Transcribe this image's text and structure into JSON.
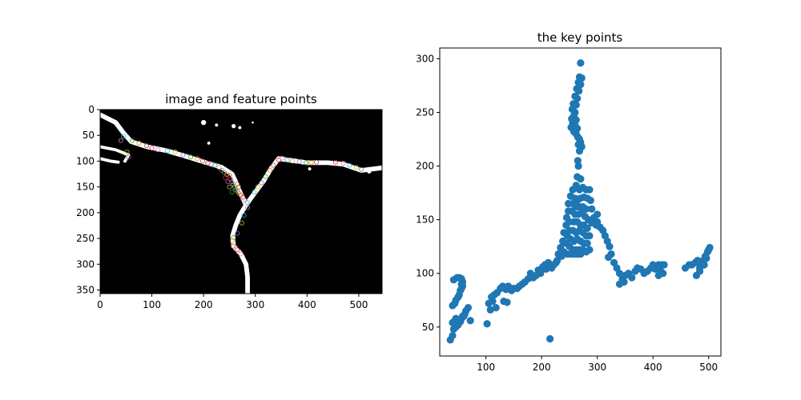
{
  "colors": {
    "point": "#1f77b4",
    "image_background": "#000000",
    "road": "#ffffff",
    "feature_marker_palette": [
      "#e377c2",
      "#17becf",
      "#bcbd22",
      "#9467bd",
      "#2ca02c",
      "#ff7f0e",
      "#8c564b",
      "#d62728"
    ]
  },
  "chart_data": [
    {
      "type": "image",
      "title": "image and feature points",
      "xlim": [
        0,
        545
      ],
      "ylim": [
        357,
        0
      ],
      "xticks": [
        0,
        100,
        200,
        300,
        400,
        500
      ],
      "yticks": [
        0,
        50,
        100,
        150,
        200,
        250,
        300,
        350
      ],
      "road_paths": [
        [
          [
            0,
            10
          ],
          [
            30,
            25
          ],
          [
            45,
            45
          ],
          [
            60,
            62
          ],
          [
            90,
            72
          ],
          [
            130,
            80
          ],
          [
            170,
            92
          ],
          [
            205,
            103
          ],
          [
            235,
            112
          ],
          [
            255,
            125
          ],
          [
            262,
            140
          ],
          [
            268,
            155
          ],
          [
            275,
            170
          ],
          [
            282,
            185
          ]
        ],
        [
          [
            282,
            185
          ],
          [
            300,
            160
          ],
          [
            315,
            140
          ],
          [
            330,
            115
          ],
          [
            345,
            95
          ],
          [
            365,
            98
          ],
          [
            400,
            103
          ],
          [
            440,
            103
          ],
          [
            470,
            106
          ],
          [
            505,
            118
          ],
          [
            545,
            113
          ]
        ],
        [
          [
            282,
            185
          ],
          [
            270,
            205
          ],
          [
            262,
            225
          ],
          [
            256,
            245
          ],
          [
            258,
            265
          ],
          [
            272,
            280
          ],
          [
            282,
            300
          ],
          [
            285,
            325
          ],
          [
            285,
            357
          ]
        ],
        [
          [
            0,
            72
          ],
          [
            30,
            78
          ],
          [
            55,
            88
          ],
          [
            48,
            100
          ]
        ],
        [
          [
            0,
            95
          ],
          [
            20,
            100
          ],
          [
            35,
            102
          ]
        ]
      ],
      "blobs": [
        [
          200,
          25,
          5
        ],
        [
          225,
          30,
          3
        ],
        [
          258,
          32,
          4
        ],
        [
          270,
          35,
          3
        ],
        [
          295,
          25,
          2
        ],
        [
          210,
          65,
          3
        ],
        [
          405,
          115,
          3
        ],
        [
          520,
          120,
          4
        ]
      ],
      "feature_points": [
        [
          40,
          60
        ],
        [
          45,
          52
        ],
        [
          52,
          82
        ],
        [
          55,
          92
        ],
        [
          62,
          60
        ],
        [
          75,
          65
        ],
        [
          90,
          70
        ],
        [
          100,
          75
        ],
        [
          112,
          78
        ],
        [
          130,
          80
        ],
        [
          145,
          82
        ],
        [
          160,
          88
        ],
        [
          175,
          92
        ],
        [
          188,
          95
        ],
        [
          198,
          100
        ],
        [
          208,
          104
        ],
        [
          215,
          106
        ],
        [
          222,
          108
        ],
        [
          230,
          112
        ],
        [
          235,
          118
        ],
        [
          240,
          122
        ],
        [
          245,
          126
        ],
        [
          250,
          128
        ],
        [
          252,
          135
        ],
        [
          255,
          140
        ],
        [
          258,
          145
        ],
        [
          260,
          150
        ],
        [
          262,
          155
        ],
        [
          265,
          158
        ],
        [
          268,
          162
        ],
        [
          272,
          166
        ],
        [
          276,
          170
        ],
        [
          280,
          176
        ],
        [
          284,
          180
        ],
        [
          250,
          150
        ],
        [
          247,
          140
        ],
        [
          255,
          160
        ],
        [
          265,
          145
        ],
        [
          268,
          150
        ],
        [
          242,
          132
        ],
        [
          285,
          190
        ],
        [
          278,
          205
        ],
        [
          274,
          220
        ],
        [
          265,
          240
        ],
        [
          258,
          248
        ],
        [
          256,
          255
        ],
        [
          257,
          265
        ],
        [
          265,
          272
        ],
        [
          272,
          280
        ],
        [
          298,
          160
        ],
        [
          305,
          150
        ],
        [
          312,
          142
        ],
        [
          320,
          130
        ],
        [
          328,
          118
        ],
        [
          335,
          108
        ],
        [
          345,
          98
        ],
        [
          352,
          94
        ],
        [
          362,
          98
        ],
        [
          372,
          100
        ],
        [
          385,
          101
        ],
        [
          398,
          103
        ],
        [
          408,
          103
        ],
        [
          418,
          102
        ],
        [
          455,
          102
        ],
        [
          470,
          104
        ],
        [
          482,
          108
        ],
        [
          495,
          112
        ],
        [
          505,
          116
        ]
      ]
    },
    {
      "type": "scatter",
      "title": "the key points",
      "xlim": [
        17,
        522
      ],
      "ylim": [
        23,
        310
      ],
      "xticks": [
        100,
        200,
        300,
        400,
        500
      ],
      "yticks": [
        50,
        100,
        150,
        200,
        250,
        300
      ],
      "points": [
        [
          270,
          296
        ],
        [
          268,
          283
        ],
        [
          272,
          282
        ],
        [
          266,
          278
        ],
        [
          270,
          276
        ],
        [
          263,
          272
        ],
        [
          267,
          270
        ],
        [
          260,
          265
        ],
        [
          264,
          263
        ],
        [
          257,
          258
        ],
        [
          262,
          257
        ],
        [
          255,
          253
        ],
        [
          260,
          250
        ],
        [
          258,
          247
        ],
        [
          254,
          244
        ],
        [
          262,
          243
        ],
        [
          256,
          240
        ],
        [
          260,
          238
        ],
        [
          253,
          236
        ],
        [
          264,
          235
        ],
        [
          258,
          232
        ],
        [
          262,
          230
        ],
        [
          265,
          227
        ],
        [
          268,
          225
        ],
        [
          270,
          222
        ],
        [
          266,
          220
        ],
        [
          272,
          218
        ],
        [
          268,
          214
        ],
        [
          265,
          205
        ],
        [
          266,
          200
        ],
        [
          264,
          190
        ],
        [
          270,
          188
        ],
        [
          262,
          182
        ],
        [
          268,
          178
        ],
        [
          274,
          180
        ],
        [
          280,
          178
        ],
        [
          286,
          178
        ],
        [
          256,
          178
        ],
        [
          252,
          172
        ],
        [
          260,
          170
        ],
        [
          264,
          168
        ],
        [
          270,
          170
        ],
        [
          276,
          171
        ],
        [
          282,
          170
        ],
        [
          288,
          168
        ],
        [
          248,
          165
        ],
        [
          256,
          165
        ],
        [
          262,
          162
        ],
        [
          268,
          162
        ],
        [
          274,
          162
        ],
        [
          280,
          160
        ],
        [
          290,
          160
        ],
        [
          294,
          152
        ],
        [
          300,
          155
        ],
        [
          248,
          158
        ],
        [
          254,
          158
        ],
        [
          260,
          155
        ],
        [
          266,
          155
        ],
        [
          272,
          157
        ],
        [
          278,
          153
        ],
        [
          284,
          150
        ],
        [
          290,
          147
        ],
        [
          298,
          145
        ],
        [
          305,
          143
        ],
        [
          300,
          148
        ],
        [
          310,
          140
        ],
        [
          314,
          135
        ],
        [
          318,
          130
        ],
        [
          245,
          152
        ],
        [
          250,
          148
        ],
        [
          258,
          148
        ],
        [
          264,
          148
        ],
        [
          270,
          145
        ],
        [
          276,
          145
        ],
        [
          282,
          142
        ],
        [
          244,
          145
        ],
        [
          250,
          140
        ],
        [
          256,
          140
        ],
        [
          262,
          138
        ],
        [
          268,
          140
        ],
        [
          274,
          138
        ],
        [
          280,
          135
        ],
        [
          286,
          135
        ],
        [
          240,
          138
        ],
        [
          246,
          135
        ],
        [
          252,
          132
        ],
        [
          258,
          130
        ],
        [
          264,
          132
        ],
        [
          270,
          130
        ],
        [
          276,
          128
        ],
        [
          282,
          128
        ],
        [
          238,
          130
        ],
        [
          244,
          128
        ],
        [
          250,
          125
        ],
        [
          256,
          122
        ],
        [
          262,
          122
        ],
        [
          268,
          122
        ],
        [
          274,
          122
        ],
        [
          280,
          120
        ],
        [
          286,
          122
        ],
        [
          234,
          124
        ],
        [
          240,
          120
        ],
        [
          246,
          118
        ],
        [
          252,
          118
        ],
        [
          258,
          118
        ],
        [
          264,
          118
        ],
        [
          270,
          118
        ],
        [
          230,
          118
        ],
        [
          236,
          116
        ],
        [
          228,
          112
        ],
        [
          222,
          108
        ],
        [
          226,
          110
        ],
        [
          218,
          105
        ],
        [
          212,
          110
        ],
        [
          206,
          108
        ],
        [
          202,
          106
        ],
        [
          208,
          104
        ],
        [
          198,
          100
        ],
        [
          194,
          103
        ],
        [
          190,
          98
        ],
        [
          185,
          96
        ],
        [
          180,
          100
        ],
        [
          176,
          95
        ],
        [
          170,
          92
        ],
        [
          165,
          90
        ],
        [
          160,
          88
        ],
        [
          156,
          86
        ],
        [
          150,
          86
        ],
        [
          146,
          84
        ],
        [
          140,
          88
        ],
        [
          136,
          85
        ],
        [
          130,
          88
        ],
        [
          126,
          86
        ],
        [
          120,
          82
        ],
        [
          115,
          80
        ],
        [
          110,
          78
        ],
        [
          105,
          72
        ],
        [
          112,
          74
        ],
        [
          108,
          66
        ],
        [
          118,
          68
        ],
        [
          102,
          53
        ],
        [
          132,
          74
        ],
        [
          138,
          73
        ],
        [
          36,
          38
        ],
        [
          40,
          42
        ],
        [
          42,
          48
        ],
        [
          46,
          50
        ],
        [
          50,
          52
        ],
        [
          54,
          55
        ],
        [
          56,
          58
        ],
        [
          58,
          60
        ],
        [
          62,
          62
        ],
        [
          64,
          65
        ],
        [
          68,
          68
        ],
        [
          50,
          56
        ],
        [
          46,
          58
        ],
        [
          42,
          55
        ],
        [
          40,
          54
        ],
        [
          40,
          70
        ],
        [
          44,
          72
        ],
        [
          46,
          75
        ],
        [
          50,
          78
        ],
        [
          52,
          80
        ],
        [
          54,
          84
        ],
        [
          56,
          86
        ],
        [
          58,
          88
        ],
        [
          56,
          90
        ],
        [
          58,
          92
        ],
        [
          56,
          95
        ],
        [
          52,
          96
        ],
        [
          48,
          96
        ],
        [
          42,
          94
        ],
        [
          60,
          60
        ],
        [
          72,
          56
        ],
        [
          215,
          39
        ],
        [
          322,
          125
        ],
        [
          325,
          118
        ],
        [
          320,
          115
        ],
        [
          330,
          110
        ],
        [
          335,
          105
        ],
        [
          340,
          100
        ],
        [
          345,
          95
        ],
        [
          340,
          90
        ],
        [
          348,
          92
        ],
        [
          350,
          98
        ],
        [
          356,
          100
        ],
        [
          362,
          96
        ],
        [
          368,
          102
        ],
        [
          372,
          105
        ],
        [
          378,
          104
        ],
        [
          384,
          100
        ],
        [
          390,
          102
        ],
        [
          396,
          105
        ],
        [
          400,
          108
        ],
        [
          404,
          104
        ],
        [
          410,
          98
        ],
        [
          414,
          102
        ],
        [
          418,
          100
        ],
        [
          416,
          108
        ],
        [
          410,
          108
        ],
        [
          420,
          108
        ],
        [
          458,
          105
        ],
        [
          465,
          108
        ],
        [
          470,
          108
        ],
        [
          476,
          110
        ],
        [
          480,
          112
        ],
        [
          478,
          98
        ],
        [
          484,
          105
        ],
        [
          486,
          110
        ],
        [
          490,
          112
        ],
        [
          494,
          116
        ],
        [
          496,
          114
        ],
        [
          498,
          120
        ],
        [
          500,
          122
        ],
        [
          502,
          124
        ],
        [
          492,
          108
        ],
        [
          484,
          102
        ]
      ]
    }
  ]
}
